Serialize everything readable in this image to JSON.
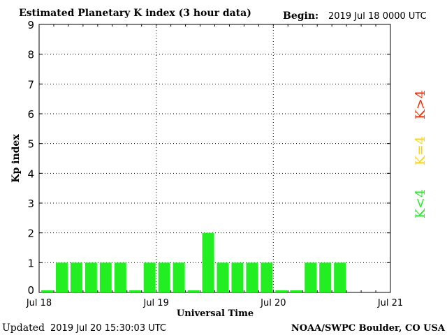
{
  "chart_data": {
    "type": "bar",
    "title": "Estimated Planetary K index (3 hour data)",
    "begin_label": "Begin:",
    "begin_value": "2019 Jul 18 0000 UTC",
    "xlabel": "Universal Time",
    "ylabel": "Kp index",
    "ylim": [
      0,
      9
    ],
    "y_ticks": [
      "0",
      "1",
      "2",
      "3",
      "4",
      "5",
      "6",
      "7",
      "8",
      "9"
    ],
    "x_ticks": [
      "Jul 18",
      "Jul 19",
      "Jul 20",
      "Jul 21"
    ],
    "interval_hours": 3,
    "values": [
      0,
      1,
      1,
      1,
      1,
      1,
      0,
      1,
      1,
      1,
      0,
      2,
      1,
      1,
      1,
      1,
      0,
      0,
      1,
      1,
      1
    ],
    "grid": true,
    "legend": {
      "high": "K>4",
      "equal": "K=4",
      "low": "K<4",
      "colors": {
        "high": "#ff2a00",
        "equal": "#ffd400",
        "low": "#22ee22"
      }
    },
    "bar_color": "#22ee22"
  },
  "footer": {
    "updated_label": "Updated",
    "updated_value": "2019 Jul 20 15:30:03 UTC",
    "credit": "NOAA/SWPC Boulder, CO USA"
  }
}
